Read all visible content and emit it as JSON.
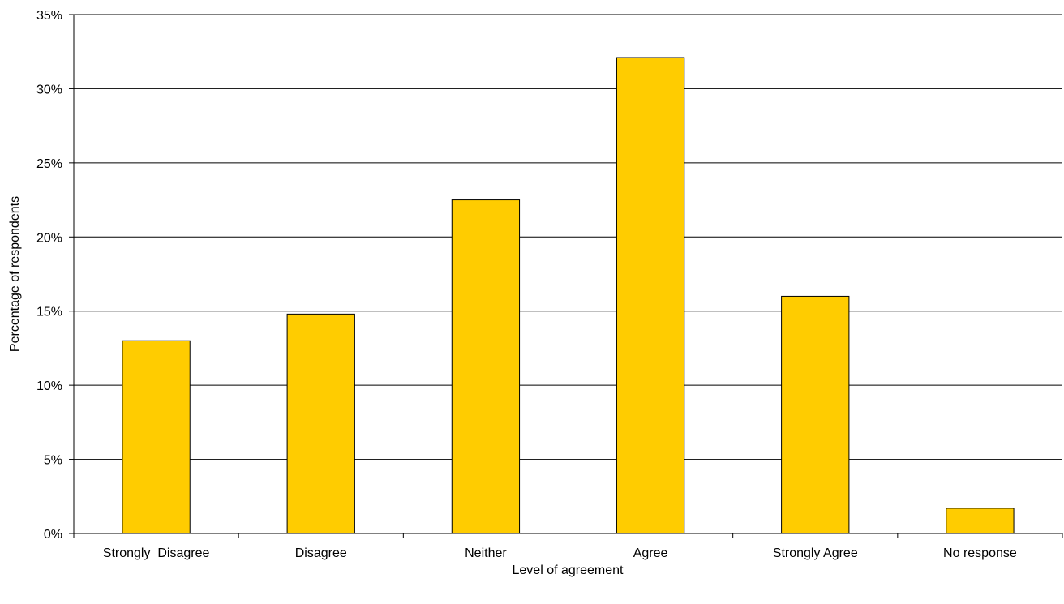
{
  "chart_data": {
    "type": "bar",
    "title": "",
    "xlabel": "Level of agreement",
    "ylabel": "Percentage of respondents",
    "categories": [
      "Strongly  Disagree",
      "Disagree",
      "Neither",
      "Agree",
      "Strongly Agree",
      "No response"
    ],
    "values": [
      13.0,
      14.8,
      22.5,
      32.1,
      16.0,
      1.7
    ],
    "ylim": [
      0,
      35
    ],
    "ytick_step": 5,
    "ytick_labels": [
      "0%",
      "5%",
      "10%",
      "15%",
      "20%",
      "25%",
      "30%",
      "35%"
    ],
    "grid": true,
    "legend": "none",
    "bar_color": "#FFCC00",
    "bar_stroke": "#000000"
  }
}
